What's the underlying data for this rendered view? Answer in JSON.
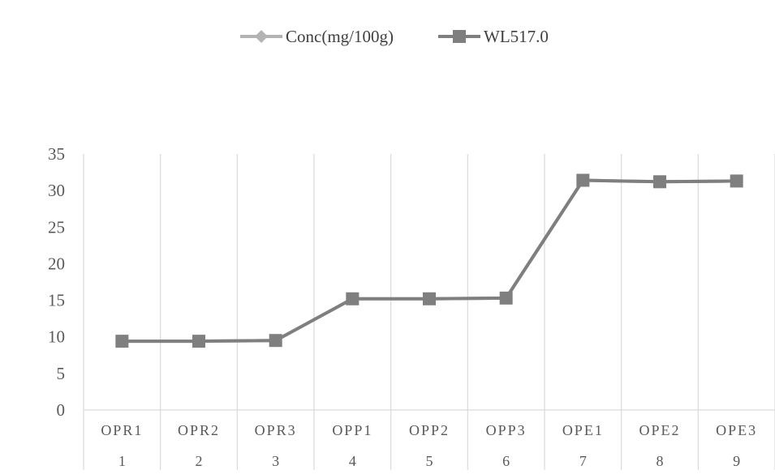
{
  "chart_data": {
    "type": "line",
    "title": "",
    "xlabel": "",
    "ylabel": "",
    "categories": [
      "OPR1",
      "OPR2",
      "OPR3",
      "OPP1",
      "OPP2",
      "OPP3",
      "OPE1",
      "OPE2",
      "OPE3"
    ],
    "category_numbers": [
      "1",
      "2",
      "3",
      "4",
      "5",
      "6",
      "7",
      "8",
      "9"
    ],
    "ylim": [
      0,
      35
    ],
    "yticks": [
      0,
      5,
      10,
      15,
      20,
      25,
      30,
      35
    ],
    "grid": "vertical",
    "legend_position": "top",
    "series": [
      {
        "name": "Conc(mg/100g)",
        "marker": "diamond",
        "color": "#b3b3b3",
        "values": [
          9.4,
          9.4,
          9.5,
          15.2,
          15.2,
          15.3,
          31.4,
          31.2,
          31.3
        ]
      },
      {
        "name": "WL517.0",
        "marker": "square",
        "color": "#7f7f7f",
        "values": [
          9.4,
          9.4,
          9.5,
          15.2,
          15.2,
          15.3,
          31.4,
          31.2,
          31.3
        ]
      }
    ]
  }
}
